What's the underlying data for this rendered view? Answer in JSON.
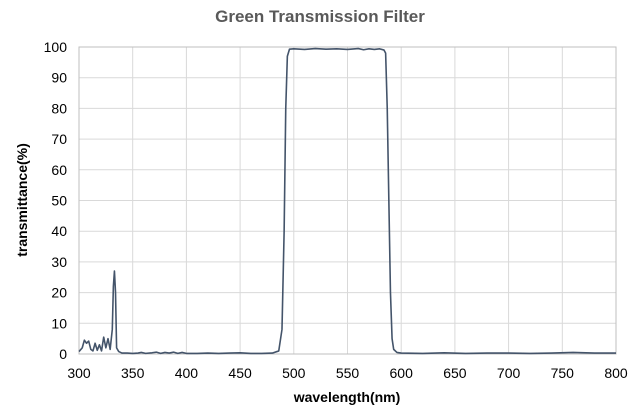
{
  "chart_data": {
    "type": "line",
    "title": "Green Transmission Filter",
    "xlabel": "wavelength(nm)",
    "ylabel": "transmittance(%)",
    "xlim": [
      300,
      800
    ],
    "ylim": [
      0,
      100
    ],
    "x_ticks": [
      300,
      350,
      400,
      450,
      500,
      550,
      600,
      650,
      700,
      750,
      800
    ],
    "y_ticks": [
      0,
      10,
      20,
      30,
      40,
      50,
      60,
      70,
      80,
      90,
      100
    ],
    "grid": "vertical and horizontal",
    "legend": "none",
    "series": [
      {
        "color": "#44546a",
        "points": [
          [
            300,
            0.8
          ],
          [
            303,
            2.0
          ],
          [
            305,
            4.5
          ],
          [
            307,
            3.5
          ],
          [
            309,
            4.2
          ],
          [
            311,
            1.5
          ],
          [
            313,
            1.0
          ],
          [
            315,
            3.5
          ],
          [
            317,
            1.2
          ],
          [
            319,
            3.0
          ],
          [
            321,
            1.0
          ],
          [
            323,
            5.5
          ],
          [
            325,
            2.0
          ],
          [
            327,
            5.0
          ],
          [
            329,
            1.5
          ],
          [
            331,
            8.0
          ],
          [
            332,
            22.0
          ],
          [
            333,
            27.0
          ],
          [
            334,
            20.0
          ],
          [
            335,
            2.0
          ],
          [
            337,
            0.8
          ],
          [
            340,
            0.3
          ],
          [
            345,
            0.3
          ],
          [
            350,
            0.2
          ],
          [
            355,
            0.3
          ],
          [
            358,
            0.5
          ],
          [
            362,
            0.2
          ],
          [
            368,
            0.4
          ],
          [
            372,
            0.6
          ],
          [
            376,
            0.2
          ],
          [
            380,
            0.5
          ],
          [
            384,
            0.3
          ],
          [
            388,
            0.6
          ],
          [
            392,
            0.2
          ],
          [
            396,
            0.5
          ],
          [
            400,
            0.2
          ],
          [
            410,
            0.2
          ],
          [
            420,
            0.3
          ],
          [
            430,
            0.2
          ],
          [
            440,
            0.3
          ],
          [
            450,
            0.4
          ],
          [
            460,
            0.2
          ],
          [
            470,
            0.2
          ],
          [
            480,
            0.3
          ],
          [
            486,
            1.0
          ],
          [
            489,
            8.0
          ],
          [
            491,
            40.0
          ],
          [
            492.5,
            80.0
          ],
          [
            494,
            97.0
          ],
          [
            496,
            99.3
          ],
          [
            500,
            99.4
          ],
          [
            510,
            99.2
          ],
          [
            520,
            99.5
          ],
          [
            530,
            99.3
          ],
          [
            540,
            99.4
          ],
          [
            550,
            99.2
          ],
          [
            560,
            99.5
          ],
          [
            565,
            99.1
          ],
          [
            570,
            99.4
          ],
          [
            575,
            99.2
          ],
          [
            580,
            99.4
          ],
          [
            584,
            99.0
          ],
          [
            585.5,
            98.0
          ],
          [
            587,
            80.0
          ],
          [
            588.5,
            50.0
          ],
          [
            590,
            20.0
          ],
          [
            591.5,
            5.0
          ],
          [
            593,
            1.5
          ],
          [
            596,
            0.5
          ],
          [
            600,
            0.3
          ],
          [
            620,
            0.2
          ],
          [
            640,
            0.4
          ],
          [
            660,
            0.2
          ],
          [
            680,
            0.3
          ],
          [
            700,
            0.3
          ],
          [
            720,
            0.2
          ],
          [
            740,
            0.3
          ],
          [
            760,
            0.5
          ],
          [
            780,
            0.3
          ],
          [
            800,
            0.3
          ]
        ]
      }
    ]
  }
}
